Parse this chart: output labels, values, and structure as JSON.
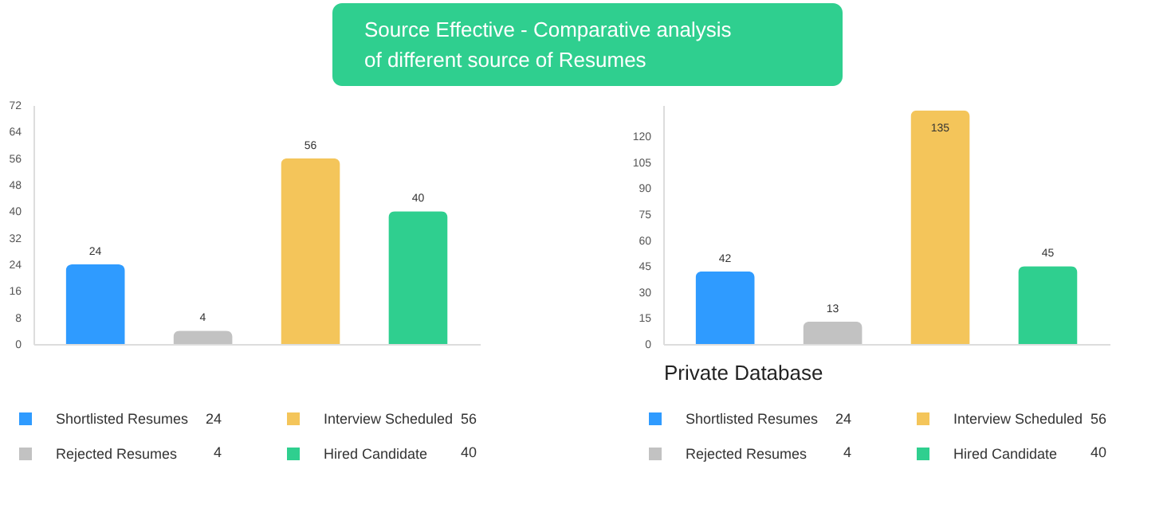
{
  "chart_data": [
    {
      "type": "bar",
      "title": "Source Effective - Comparative analysis of different source of Resumes",
      "categories": [
        null,
        null,
        null,
        null
      ],
      "series": [
        {
          "name": "Shortlisted Resumes",
          "color": "#2f9bff",
          "values": [
            24,
            null,
            null,
            null
          ]
        },
        {
          "name": "Rejected Resumes",
          "color": "#c2c2c2",
          "values": [
            null,
            4,
            null,
            null
          ]
        },
        {
          "name": "Interview Scheduled",
          "color": "#f4c55a",
          "values": [
            null,
            null,
            56,
            null
          ]
        },
        {
          "name": "Hired Candidate",
          "color": "#2fcf8f",
          "values": [
            null,
            null,
            null,
            40
          ]
        }
      ],
      "ylim": [
        0,
        72
      ],
      "yticks": [
        0,
        8,
        16,
        24,
        32,
        40,
        48,
        56,
        64,
        72
      ],
      "data_labels": true,
      "legend": "bottom",
      "tick_labels": "y",
      "grid": false,
      "annotations": [
        "24",
        "4",
        "56",
        "40"
      ]
    },
    {
      "type": "bar",
      "xlabel": "Private Database",
      "categories": [
        null,
        null,
        null,
        null
      ],
      "series": [
        {
          "name": "Shortlisted Resumes",
          "color": "#2f9bff",
          "values": [
            42,
            null,
            null,
            null
          ]
        },
        {
          "name": "Rejected Resumes",
          "color": "#c2c2c2",
          "values": [
            null,
            13,
            null,
            null
          ]
        },
        {
          "name": "Interview Scheduled",
          "color": "#f4c55a",
          "values": [
            null,
            null,
            135,
            null
          ]
        },
        {
          "name": "Hired Candidate",
          "color": "#2fcf8f",
          "values": [
            null,
            null,
            null,
            45
          ]
        }
      ],
      "ylim": [
        0,
        138
      ],
      "yticks": [
        0,
        15,
        30,
        45,
        60,
        75,
        90,
        105,
        120
      ],
      "data_labels": true,
      "legend": "bottom",
      "tick_labels": "y",
      "grid": false,
      "annotations": [
        "24",
        "4",
        "56",
        "40"
      ]
    }
  ]
}
